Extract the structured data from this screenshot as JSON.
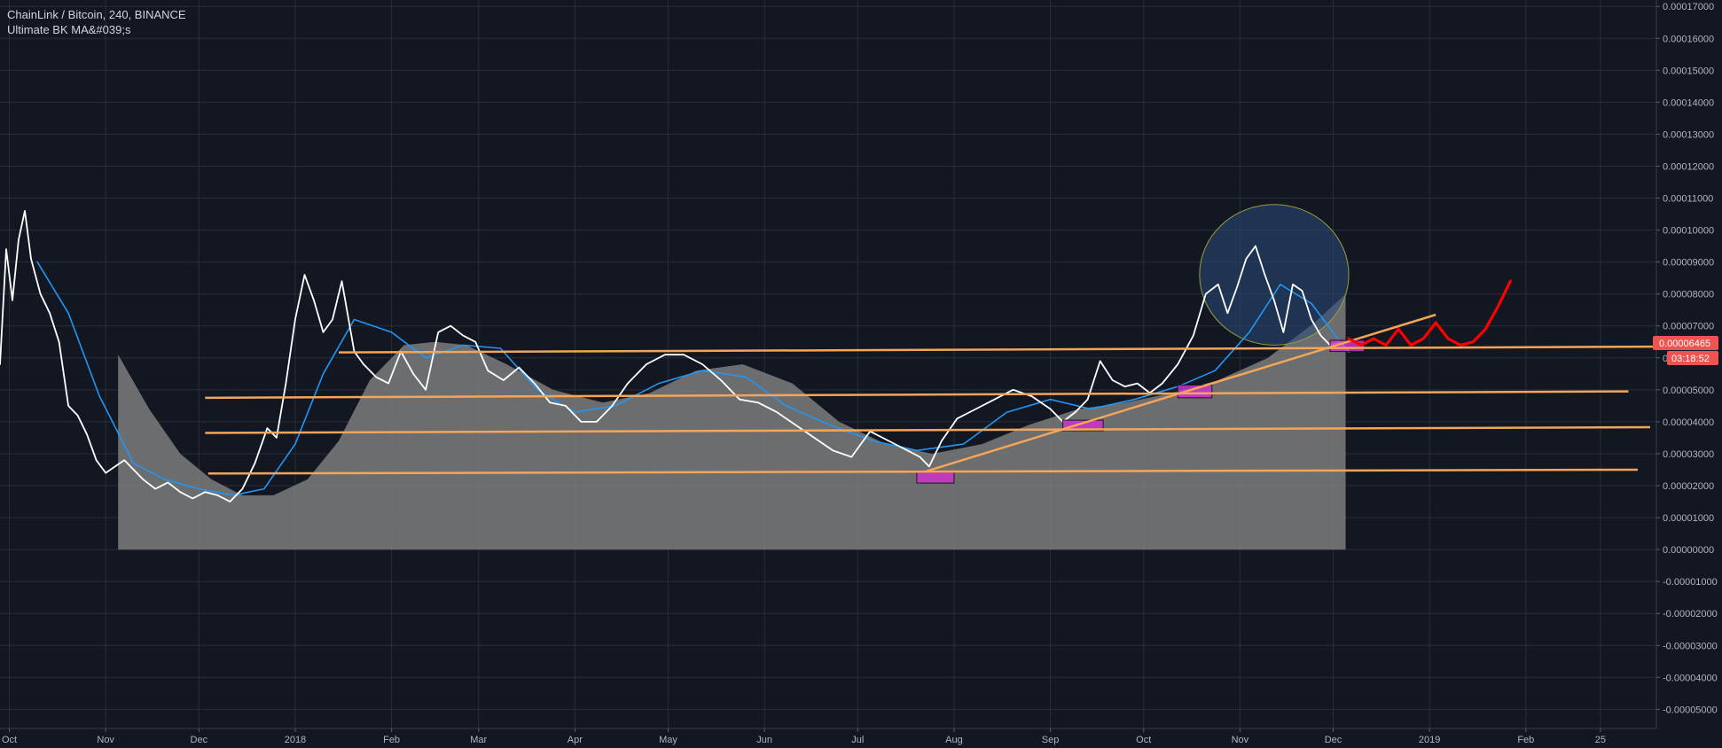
{
  "legend": {
    "symbol_line": "ChainLink / Bitcoin, 240, BINANCE",
    "indicator_line": "Ultimate BK MA&#039;s"
  },
  "price_tag": {
    "value": "0.00006465",
    "countdown": "03:18:52",
    "color": "#ef5350"
  },
  "colors": {
    "background": "#131722",
    "grid": "#2a2e39",
    "price": "#ffffff",
    "ma": "#2196f3",
    "area": "#7c7c7c",
    "trendline": "#f5a55a",
    "zone": "#cc33cc",
    "projection": "#ff0000",
    "ellipse_stroke": "#9c9c3c",
    "ellipse_fill": "#2a4a7a"
  },
  "chart_data": {
    "type": "line",
    "x_axis": {
      "type": "date",
      "range": [
        "2017-09-28",
        "2019-03-15"
      ],
      "ticks": [
        {
          "label": "Oct",
          "date": "2017-10-01"
        },
        {
          "label": "Nov",
          "date": "2017-11-01"
        },
        {
          "label": "Dec",
          "date": "2017-12-01"
        },
        {
          "label": "2018",
          "date": "2018-01-01"
        },
        {
          "label": "Feb",
          "date": "2018-02-01"
        },
        {
          "label": "Mar",
          "date": "2018-03-01"
        },
        {
          "label": "Apr",
          "date": "2018-04-01"
        },
        {
          "label": "May",
          "date": "2018-05-01"
        },
        {
          "label": "Jun",
          "date": "2018-06-01"
        },
        {
          "label": "Jul",
          "date": "2018-07-01"
        },
        {
          "label": "Aug",
          "date": "2018-08-01"
        },
        {
          "label": "Sep",
          "date": "2018-09-01"
        },
        {
          "label": "Oct",
          "date": "2018-10-01"
        },
        {
          "label": "Nov",
          "date": "2018-11-01"
        },
        {
          "label": "Dec",
          "date": "2018-12-01"
        },
        {
          "label": "2019",
          "date": "2019-01-01"
        },
        {
          "label": "Feb",
          "date": "2019-02-01"
        },
        {
          "label": "25",
          "date": "2019-02-25"
        }
      ]
    },
    "y_axis": {
      "range": [
        -5.6e-05,
        0.000172
      ],
      "ticks": [
        "0.00017000",
        "0.00016000",
        "0.00015000",
        "0.00014000",
        "0.00013000",
        "0.00012000",
        "0.00011000",
        "0.00010000",
        "0.00009000",
        "0.00008000",
        "0.00007000",
        "0.00006000",
        "0.00005000",
        "0.00004000",
        "0.00003000",
        "0.00002000",
        "0.00001000",
        "0.00000000",
        "-0.00001000",
        "-0.00002000",
        "-0.00003000",
        "-0.00004000",
        "-0.00005000"
      ],
      "tick_values": [
        0.00017,
        0.00016,
        0.00015,
        0.00014,
        0.00013,
        0.00012,
        0.00011,
        0.0001,
        9e-05,
        8e-05,
        7e-05,
        6e-05,
        5e-05,
        4e-05,
        3e-05,
        2e-05,
        1e-05,
        0,
        -1e-05,
        -2e-05,
        -3e-05,
        -4e-05,
        -5e-05
      ]
    },
    "grid": true,
    "series": [
      {
        "id": "price",
        "x": [
          "2017-09-28",
          "2017-09-30",
          "2017-10-02",
          "2017-10-04",
          "2017-10-06",
          "2017-10-08",
          "2017-10-11",
          "2017-10-14",
          "2017-10-17",
          "2017-10-20",
          "2017-10-23",
          "2017-10-26",
          "2017-10-29",
          "2017-11-01",
          "2017-11-04",
          "2017-11-07",
          "2017-11-10",
          "2017-11-13",
          "2017-11-17",
          "2017-11-21",
          "2017-11-25",
          "2017-11-29",
          "2017-12-03",
          "2017-12-07",
          "2017-12-11",
          "2017-12-15",
          "2017-12-19",
          "2017-12-23",
          "2017-12-26",
          "2017-12-29",
          "2018-01-01",
          "2018-01-04",
          "2018-01-07",
          "2018-01-10",
          "2018-01-13",
          "2018-01-16",
          "2018-01-20",
          "2018-01-23",
          "2018-01-27",
          "2018-01-31",
          "2018-02-04",
          "2018-02-08",
          "2018-02-12",
          "2018-02-16",
          "2018-02-20",
          "2018-02-24",
          "2018-02-28",
          "2018-03-04",
          "2018-03-09",
          "2018-03-14",
          "2018-03-19",
          "2018-03-24",
          "2018-03-29",
          "2018-04-03",
          "2018-04-08",
          "2018-04-13",
          "2018-04-18",
          "2018-04-24",
          "2018-04-30",
          "2018-05-06",
          "2018-05-12",
          "2018-05-18",
          "2018-05-24",
          "2018-05-30",
          "2018-06-05",
          "2018-06-11",
          "2018-06-17",
          "2018-06-23",
          "2018-06-29",
          "2018-07-05",
          "2018-07-11",
          "2018-07-17",
          "2018-07-21",
          "2018-07-24",
          "2018-07-28",
          "2018-08-02",
          "2018-08-08",
          "2018-08-14",
          "2018-08-20",
          "2018-08-26",
          "2018-09-01",
          "2018-09-05",
          "2018-09-09",
          "2018-09-13",
          "2018-09-17",
          "2018-09-21",
          "2018-09-25",
          "2018-09-29",
          "2018-10-03",
          "2018-10-07",
          "2018-10-12",
          "2018-10-17",
          "2018-10-21",
          "2018-10-25",
          "2018-10-28",
          "2018-10-31",
          "2018-11-03",
          "2018-11-06",
          "2018-11-09",
          "2018-11-12",
          "2018-11-15",
          "2018-11-18",
          "2018-11-21",
          "2018-11-24",
          "2018-11-27",
          "2018-11-30",
          "2018-12-03",
          "2018-12-06"
        ],
        "values": [
          5.8e-05,
          9.4e-05,
          7.8e-05,
          9.7e-05,
          0.000106,
          9.1e-05,
          8e-05,
          7.4e-05,
          6.5e-05,
          4.5e-05,
          4.2e-05,
          3.6e-05,
          2.8e-05,
          2.4e-05,
          2.6e-05,
          2.8e-05,
          2.5e-05,
          2.2e-05,
          1.9e-05,
          2.1e-05,
          1.8e-05,
          1.6e-05,
          1.8e-05,
          1.7e-05,
          1.5e-05,
          1.9e-05,
          2.7e-05,
          3.8e-05,
          3.5e-05,
          5.2e-05,
          7.2e-05,
          8.6e-05,
          7.8e-05,
          6.8e-05,
          7.2e-05,
          8.4e-05,
          6.2e-05,
          5.8e-05,
          5.4e-05,
          5.2e-05,
          6.2e-05,
          5.5e-05,
          5e-05,
          6.8e-05,
          7e-05,
          6.7e-05,
          6.5e-05,
          5.6e-05,
          5.3e-05,
          5.7e-05,
          5.2e-05,
          4.6e-05,
          4.5e-05,
          4e-05,
          4e-05,
          4.5e-05,
          5.2e-05,
          5.8e-05,
          6.1e-05,
          6.1e-05,
          5.8e-05,
          5.3e-05,
          4.7e-05,
          4.6e-05,
          4.3e-05,
          3.9e-05,
          3.5e-05,
          3.1e-05,
          2.9e-05,
          3.7e-05,
          3.4e-05,
          3.1e-05,
          2.9e-05,
          2.6e-05,
          3.4e-05,
          4.1e-05,
          4.4e-05,
          4.7e-05,
          5e-05,
          4.8e-05,
          4.4e-05,
          4e-05,
          4.3e-05,
          4.7e-05,
          5.9e-05,
          5.3e-05,
          5.1e-05,
          5.2e-05,
          4.9e-05,
          5.2e-05,
          5.8e-05,
          6.7e-05,
          8e-05,
          8.3e-05,
          7.4e-05,
          8.2e-05,
          9.1e-05,
          9.5e-05,
          8.6e-05,
          7.8e-05,
          6.8e-05,
          8.3e-05,
          8.1e-05,
          7.2e-05,
          6.7e-05,
          6.4e-05,
          6.5e-05,
          6.2e-05
        ]
      },
      {
        "id": "ma",
        "x": [
          "2017-10-10",
          "2017-10-20",
          "2017-10-30",
          "2017-11-10",
          "2017-11-20",
          "2017-12-01",
          "2017-12-12",
          "2017-12-22",
          "2018-01-01",
          "2018-01-10",
          "2018-01-20",
          "2018-02-01",
          "2018-02-12",
          "2018-02-24",
          "2018-03-08",
          "2018-03-20",
          "2018-04-01",
          "2018-04-14",
          "2018-04-28",
          "2018-05-12",
          "2018-05-26",
          "2018-06-08",
          "2018-06-22",
          "2018-07-06",
          "2018-07-20",
          "2018-08-04",
          "2018-08-18",
          "2018-09-01",
          "2018-09-14",
          "2018-09-28",
          "2018-10-12",
          "2018-10-24",
          "2018-11-04",
          "2018-11-14",
          "2018-11-24",
          "2018-12-04"
        ],
        "values": [
          9e-05,
          7.4e-05,
          4.8e-05,
          2.7e-05,
          2.2e-05,
          1.9e-05,
          1.7e-05,
          1.9e-05,
          3.3e-05,
          5.5e-05,
          7.2e-05,
          6.8e-05,
          6e-05,
          6.4e-05,
          6.3e-05,
          5e-05,
          4.3e-05,
          4.5e-05,
          5.2e-05,
          5.6e-05,
          5.4e-05,
          4.5e-05,
          3.9e-05,
          3.4e-05,
          3.1e-05,
          3.3e-05,
          4.3e-05,
          4.7e-05,
          4.4e-05,
          4.7e-05,
          5.1e-05,
          5.6e-05,
          6.8e-05,
          8.3e-05,
          7.7e-05,
          6.4e-05
        ]
      },
      {
        "id": "slow-ma-area",
        "x": [
          "2017-11-05",
          "2017-11-15",
          "2017-11-25",
          "2017-12-05",
          "2017-12-15",
          "2017-12-25",
          "2018-01-05",
          "2018-01-15",
          "2018-01-25",
          "2018-02-05",
          "2018-02-15",
          "2018-02-25",
          "2018-03-10",
          "2018-03-25",
          "2018-04-10",
          "2018-04-25",
          "2018-05-10",
          "2018-05-25",
          "2018-06-10",
          "2018-06-25",
          "2018-07-10",
          "2018-07-25",
          "2018-08-10",
          "2018-08-25",
          "2018-09-10",
          "2018-09-25",
          "2018-10-10",
          "2018-10-25",
          "2018-11-10",
          "2018-11-25",
          "2018-12-05"
        ],
        "values": [
          6.1e-05,
          4.4e-05,
          3e-05,
          2.2e-05,
          1.7e-05,
          1.7e-05,
          2.2e-05,
          3.4e-05,
          5.3e-05,
          6.4e-05,
          6.5e-05,
          6.4e-05,
          5.8e-05,
          5e-05,
          4.6e-05,
          4.9e-05,
          5.6e-05,
          5.8e-05,
          5.2e-05,
          4e-05,
          3.3e-05,
          3e-05,
          3.3e-05,
          3.9e-05,
          4.4e-05,
          4.6e-05,
          4.9e-05,
          5.3e-05,
          6e-05,
          7.1e-05,
          8e-05
        ]
      }
    ],
    "annotations": {
      "horizontal_lines": [
        {
          "x": [
            "2018-01-15",
            "2019-03-14"
          ],
          "y": [
            6.17e-05,
            6.35e-05
          ]
        },
        {
          "x": [
            "2017-12-03",
            "2019-03-06"
          ],
          "y": [
            4.75e-05,
            4.95e-05
          ]
        },
        {
          "x": [
            "2017-12-03",
            "2019-03-13"
          ],
          "y": [
            3.65e-05,
            3.83e-05
          ]
        },
        {
          "x": [
            "2017-12-04",
            "2019-03-09"
          ],
          "y": [
            2.38e-05,
            2.5e-05
          ]
        }
      ],
      "rising_trendline": {
        "x": [
          "2018-07-23",
          "2019-01-03"
        ],
        "y": [
          2.45e-05,
          7.35e-05
        ]
      },
      "zones": [
        {
          "x": [
            "2018-07-20",
            "2018-08-01"
          ],
          "y": [
            2.08e-05,
            2.42e-05
          ]
        },
        {
          "x": [
            "2018-09-05",
            "2018-09-18"
          ],
          "y": [
            3.72e-05,
            4.05e-05
          ]
        },
        {
          "x": [
            "2018-10-12",
            "2018-10-23"
          ],
          "y": [
            4.75e-05,
            5.15e-05
          ]
        },
        {
          "x": [
            "2018-11-30",
            "2018-12-11"
          ],
          "y": [
            6.2e-05,
            6.55e-05
          ]
        }
      ],
      "ellipse": {
        "center": [
          "2018-11-12",
          8.6e-05
        ],
        "x_radius_days": 24,
        "y_radius": 2.2e-05
      },
      "projection": {
        "x": [
          "2018-12-06",
          "2018-12-10",
          "2018-12-14",
          "2018-12-18",
          "2018-12-22",
          "2018-12-26",
          "2018-12-30",
          "2019-01-03",
          "2019-01-07",
          "2019-01-11",
          "2019-01-15",
          "2019-01-19",
          "2019-01-23",
          "2019-01-27"
        ],
        "values": [
          6.6e-05,
          6.4e-05,
          6.6e-05,
          6.4e-05,
          6.9e-05,
          6.4e-05,
          6.6e-05,
          7.1e-05,
          6.6e-05,
          6.4e-05,
          6.5e-05,
          6.9e-05,
          7.6e-05,
          8.4e-05
        ]
      }
    }
  }
}
